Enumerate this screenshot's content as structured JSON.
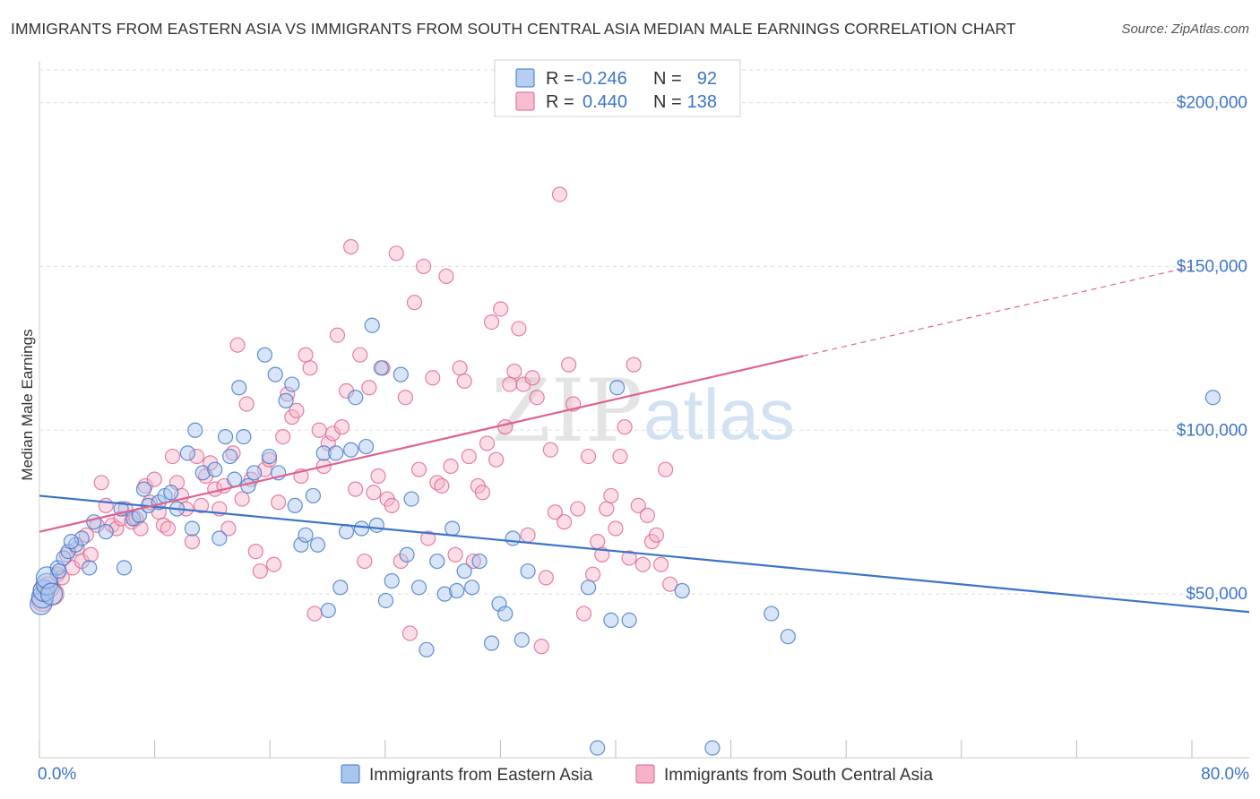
{
  "title": "IMMIGRANTS FROM EASTERN ASIA VS IMMIGRANTS FROM SOUTH CENTRAL ASIA MEDIAN MALE EARNINGS CORRELATION CHART",
  "source": "Source: ZipAtlas.com",
  "watermark": {
    "zip": "ZIP",
    "atlas": "atlas"
  },
  "colors": {
    "blue": "#3b74c8",
    "blue_fill": "#a9c6ee",
    "pink": "#e0628f",
    "pink_fill": "#f4b3c8",
    "grid": "#dddddd"
  },
  "legend_top": {
    "row1": {
      "r_label": "R = ",
      "r_value": "-0.246",
      "n_label": "N = ",
      "n_value": "92"
    },
    "row2": {
      "r_label": "R = ",
      "r_value": "0.440",
      "n_label": "N = ",
      "n_value": "138"
    }
  },
  "chart_data": {
    "type": "scatter",
    "title": "IMMIGRANTS FROM EASTERN ASIA VS IMMIGRANTS FROM SOUTH CENTRAL ASIA MEDIAN MALE EARNINGS CORRELATION CHART",
    "xlabel": "",
    "ylabel": "Median Male Earnings",
    "xlim": [
      0,
      80
    ],
    "ylim": [
      0,
      210000
    ],
    "x_tick_labels": [
      "0.0%",
      "80.0%"
    ],
    "y_ticks": [
      {
        "value": 50000,
        "label": "$50,000"
      },
      {
        "value": 100000,
        "label": "$100,000"
      },
      {
        "value": 150000,
        "label": "$150,000"
      },
      {
        "value": 200000,
        "label": "$200,000"
      }
    ],
    "grid": true,
    "legend_position": "top-center",
    "series": [
      {
        "name": "Immigrants from Eastern Asia",
        "color": "#3b74c8",
        "r": -0.246,
        "n": 92,
        "trend": {
          "x": [
            0,
            80
          ],
          "y": [
            80000,
            44500
          ],
          "dashed_from": null
        },
        "points": [
          [
            0.1,
            47000
          ],
          [
            0.2,
            49000
          ],
          [
            0.3,
            51000
          ],
          [
            0.5,
            53000
          ],
          [
            0.5,
            55000
          ],
          [
            1.2,
            58000
          ],
          [
            1.6,
            61000
          ],
          [
            1.9,
            63000
          ],
          [
            2.4,
            65000
          ],
          [
            2.8,
            67000
          ],
          [
            3.3,
            58000
          ],
          [
            3.6,
            72000
          ],
          [
            4.4,
            69000
          ],
          [
            5.4,
            76000
          ],
          [
            5.6,
            58000
          ],
          [
            6.2,
            73000
          ],
          [
            6.6,
            74000
          ],
          [
            6.9,
            82000
          ],
          [
            7.2,
            77000
          ],
          [
            7.9,
            78000
          ],
          [
            8.3,
            80000
          ],
          [
            8.7,
            81000
          ],
          [
            9.1,
            76000
          ],
          [
            9.8,
            93000
          ],
          [
            10.1,
            70000
          ],
          [
            10.3,
            100000
          ],
          [
            10.8,
            87000
          ],
          [
            11.6,
            88000
          ],
          [
            11.9,
            67000
          ],
          [
            12.3,
            98000
          ],
          [
            12.6,
            92000
          ],
          [
            12.9,
            85000
          ],
          [
            13.2,
            113000
          ],
          [
            13.5,
            98000
          ],
          [
            13.8,
            83000
          ],
          [
            14.2,
            87000
          ],
          [
            14.9,
            123000
          ],
          [
            15.2,
            92000
          ],
          [
            15.6,
            117000
          ],
          [
            15.8,
            87000
          ],
          [
            16.3,
            109000
          ],
          [
            16.7,
            114000
          ],
          [
            16.9,
            77000
          ],
          [
            17.3,
            65000
          ],
          [
            17.6,
            68000
          ],
          [
            18.1,
            80000
          ],
          [
            18.4,
            65000
          ],
          [
            18.8,
            93000
          ],
          [
            19.1,
            45000
          ],
          [
            19.6,
            93000
          ],
          [
            19.9,
            52000
          ],
          [
            20.3,
            69000
          ],
          [
            20.6,
            94000
          ],
          [
            20.9,
            110000
          ],
          [
            21.3,
            70000
          ],
          [
            21.6,
            95000
          ],
          [
            22.0,
            132000
          ],
          [
            22.3,
            71000
          ],
          [
            22.6,
            119000
          ],
          [
            22.9,
            48000
          ],
          [
            23.3,
            54000
          ],
          [
            23.9,
            117000
          ],
          [
            24.3,
            62000
          ],
          [
            24.6,
            79000
          ],
          [
            25.1,
            52000
          ],
          [
            25.6,
            33000
          ],
          [
            26.3,
            60000
          ],
          [
            26.8,
            50000
          ],
          [
            27.3,
            70000
          ],
          [
            27.6,
            51000
          ],
          [
            28.1,
            57000
          ],
          [
            28.6,
            52000
          ],
          [
            29.1,
            60000
          ],
          [
            29.9,
            35000
          ],
          [
            30.4,
            47000
          ],
          [
            30.8,
            44000
          ],
          [
            31.3,
            67000
          ],
          [
            31.9,
            36000
          ],
          [
            32.3,
            57000
          ],
          [
            36.3,
            52000
          ],
          [
            36.9,
            3000
          ],
          [
            37.8,
            42000
          ],
          [
            39.0,
            42000
          ],
          [
            38.2,
            113000
          ],
          [
            42.5,
            51000
          ],
          [
            44.5,
            3000
          ],
          [
            48.4,
            44000
          ],
          [
            49.5,
            37000
          ],
          [
            77.6,
            110000
          ],
          [
            0.8,
            50000
          ],
          [
            1.3,
            57000
          ],
          [
            2.1,
            66000
          ]
        ]
      },
      {
        "name": "Immigrants from South Central Asia",
        "color": "#e0628f",
        "r": 0.44,
        "n": 138,
        "trend": {
          "x": [
            0,
            80
          ],
          "y": [
            69000,
            154000
          ],
          "dashed_from": 50.5
        },
        "points": [
          [
            0.2,
            48000
          ],
          [
            0.3,
            51000
          ],
          [
            0.6,
            52000
          ],
          [
            0.9,
            50000
          ],
          [
            1.2,
            56000
          ],
          [
            1.5,
            55000
          ],
          [
            1.8,
            62000
          ],
          [
            2.2,
            58000
          ],
          [
            2.5,
            64000
          ],
          [
            2.8,
            60000
          ],
          [
            3.1,
            68000
          ],
          [
            3.4,
            62000
          ],
          [
            3.8,
            71000
          ],
          [
            4.1,
            84000
          ],
          [
            4.4,
            77000
          ],
          [
            4.8,
            71000
          ],
          [
            5.1,
            70000
          ],
          [
            5.4,
            73000
          ],
          [
            5.7,
            76000
          ],
          [
            6.1,
            72000
          ],
          [
            6.4,
            73000
          ],
          [
            6.7,
            70000
          ],
          [
            7.0,
            83000
          ],
          [
            7.3,
            78000
          ],
          [
            7.6,
            85000
          ],
          [
            7.9,
            75000
          ],
          [
            8.2,
            71000
          ],
          [
            8.5,
            70000
          ],
          [
            8.8,
            92000
          ],
          [
            9.1,
            84000
          ],
          [
            9.4,
            80000
          ],
          [
            9.7,
            76000
          ],
          [
            10.1,
            66000
          ],
          [
            10.4,
            92000
          ],
          [
            10.7,
            77000
          ],
          [
            11.0,
            86000
          ],
          [
            11.3,
            90000
          ],
          [
            11.6,
            82000
          ],
          [
            11.9,
            76000
          ],
          [
            12.2,
            83000
          ],
          [
            12.5,
            70000
          ],
          [
            12.8,
            93000
          ],
          [
            13.1,
            126000
          ],
          [
            13.4,
            79000
          ],
          [
            13.7,
            108000
          ],
          [
            14.0,
            85000
          ],
          [
            14.3,
            63000
          ],
          [
            14.6,
            57000
          ],
          [
            14.9,
            88000
          ],
          [
            15.2,
            91000
          ],
          [
            15.5,
            59000
          ],
          [
            15.8,
            78000
          ],
          [
            16.1,
            98000
          ],
          [
            16.4,
            111000
          ],
          [
            16.7,
            104000
          ],
          [
            17.0,
            106000
          ],
          [
            17.3,
            86000
          ],
          [
            17.6,
            123000
          ],
          [
            17.9,
            119000
          ],
          [
            18.2,
            44000
          ],
          [
            18.5,
            100000
          ],
          [
            18.8,
            89000
          ],
          [
            19.1,
            96000
          ],
          [
            19.4,
            99000
          ],
          [
            19.7,
            129000
          ],
          [
            20.0,
            101000
          ],
          [
            20.3,
            112000
          ],
          [
            20.6,
            156000
          ],
          [
            20.9,
            82000
          ],
          [
            21.2,
            123000
          ],
          [
            21.5,
            60000
          ],
          [
            21.8,
            113000
          ],
          [
            22.1,
            81000
          ],
          [
            22.4,
            86000
          ],
          [
            22.7,
            119000
          ],
          [
            23.0,
            79000
          ],
          [
            23.3,
            77000
          ],
          [
            23.6,
            154000
          ],
          [
            23.9,
            60000
          ],
          [
            24.2,
            110000
          ],
          [
            24.5,
            38000
          ],
          [
            24.8,
            139000
          ],
          [
            25.1,
            88000
          ],
          [
            25.4,
            150000
          ],
          [
            25.7,
            67000
          ],
          [
            26.0,
            116000
          ],
          [
            26.3,
            84000
          ],
          [
            26.6,
            83000
          ],
          [
            26.9,
            147000
          ],
          [
            27.2,
            89000
          ],
          [
            27.5,
            62000
          ],
          [
            27.8,
            119000
          ],
          [
            28.1,
            115000
          ],
          [
            28.4,
            92000
          ],
          [
            28.7,
            60000
          ],
          [
            29.0,
            83000
          ],
          [
            29.3,
            81000
          ],
          [
            29.6,
            96000
          ],
          [
            29.9,
            133000
          ],
          [
            30.2,
            91000
          ],
          [
            30.5,
            137000
          ],
          [
            30.8,
            101000
          ],
          [
            31.1,
            114000
          ],
          [
            31.4,
            118000
          ],
          [
            31.7,
            131000
          ],
          [
            32.0,
            114000
          ],
          [
            32.3,
            68000
          ],
          [
            32.6,
            116000
          ],
          [
            32.9,
            110000
          ],
          [
            33.2,
            34000
          ],
          [
            33.5,
            55000
          ],
          [
            33.8,
            94000
          ],
          [
            34.1,
            75000
          ],
          [
            34.4,
            172000
          ],
          [
            34.7,
            72000
          ],
          [
            35.0,
            120000
          ],
          [
            35.3,
            108000
          ],
          [
            35.6,
            76000
          ],
          [
            36.0,
            44000
          ],
          [
            36.3,
            92000
          ],
          [
            36.6,
            56000
          ],
          [
            36.9,
            66000
          ],
          [
            37.2,
            62000
          ],
          [
            37.5,
            76000
          ],
          [
            37.8,
            80000
          ],
          [
            38.1,
            70000
          ],
          [
            38.4,
            92000
          ],
          [
            38.7,
            101000
          ],
          [
            39.0,
            61000
          ],
          [
            39.3,
            120000
          ],
          [
            39.6,
            77000
          ],
          [
            39.9,
            59000
          ],
          [
            40.2,
            74000
          ],
          [
            40.5,
            66000
          ],
          [
            40.8,
            68000
          ],
          [
            41.1,
            59000
          ],
          [
            41.4,
            88000
          ],
          [
            41.7,
            53000
          ]
        ]
      }
    ]
  },
  "bottom_legend": {
    "item1": "Immigrants from Eastern Asia",
    "item2": "Immigrants from South Central Asia"
  }
}
